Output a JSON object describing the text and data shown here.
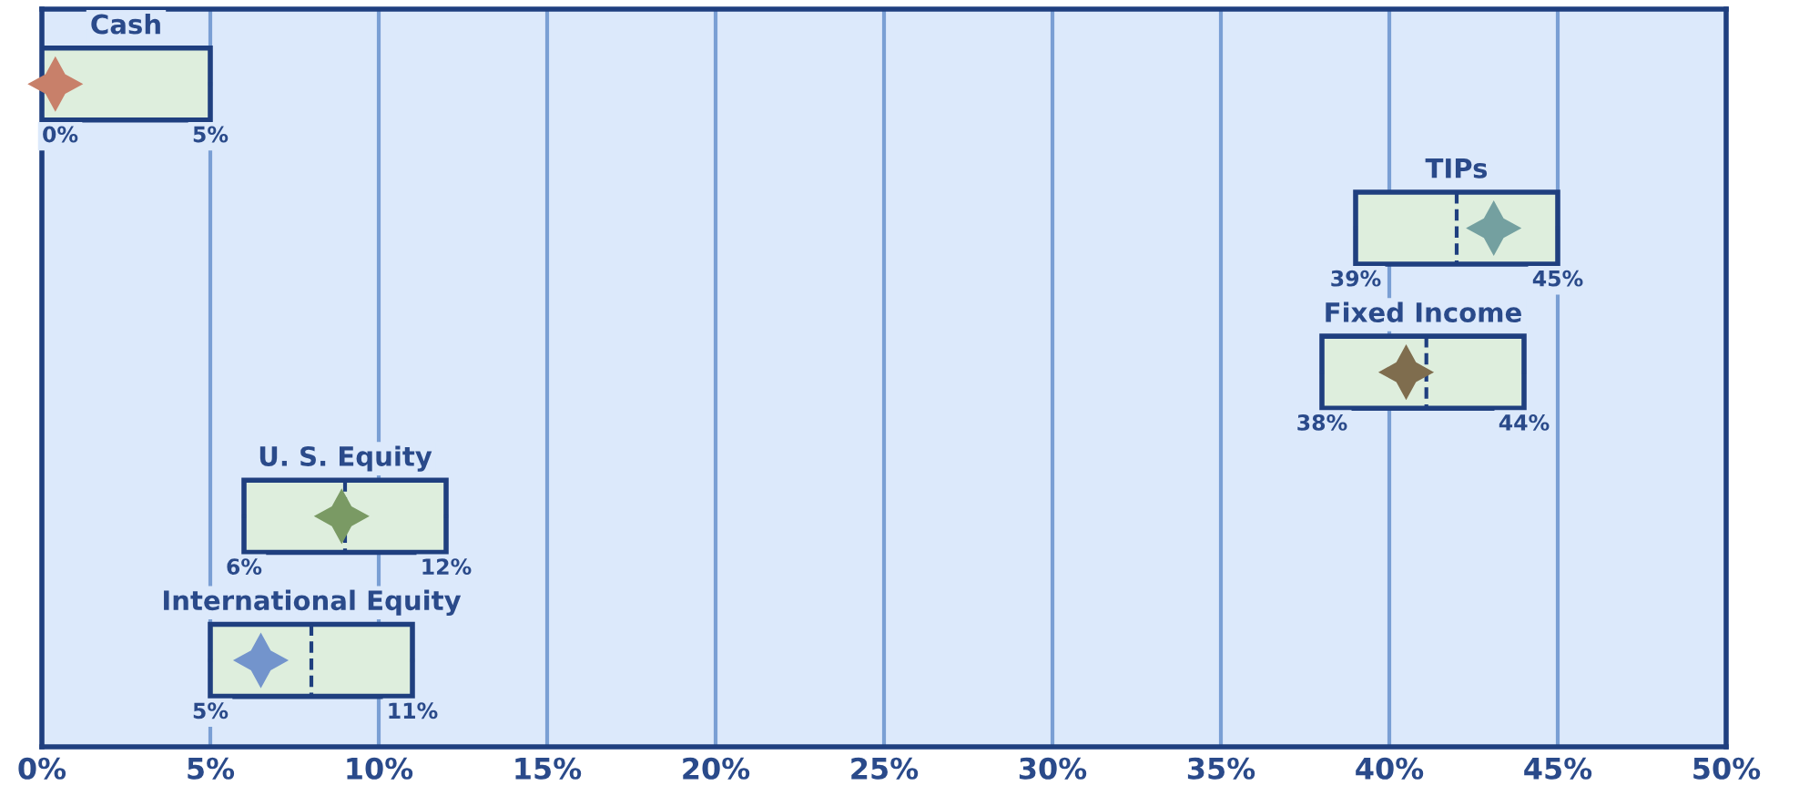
{
  "chart_data": {
    "type": "box",
    "orientation": "horizontal",
    "categories": [
      "Cash",
      "TIPs",
      "Fixed Income",
      "U. S. Equity",
      "International Equity"
    ],
    "boxes": [
      {
        "low": 0,
        "q1": 0,
        "median": 0,
        "q3": 5,
        "high": 5
      },
      {
        "low": 39,
        "q1": 39,
        "median": 42,
        "q3": 45,
        "high": 45
      },
      {
        "low": 38,
        "q1": 38,
        "median": 41.1,
        "q3": 44,
        "high": 44
      },
      {
        "low": 6,
        "q1": 6,
        "median": 9,
        "q3": 12,
        "high": 12
      },
      {
        "low": 5,
        "q1": 5,
        "median": 8,
        "q3": 11,
        "high": 11
      }
    ],
    "value_labels": [
      [
        "0%",
        "5%"
      ],
      [
        "39%",
        "45%"
      ],
      [
        "38%",
        "44%"
      ],
      [
        "6%",
        "12%"
      ],
      [
        "5%",
        "11%"
      ]
    ],
    "color": "#deeedd",
    "series": [
      {
        "type": "scatter",
        "values": [
          0.4,
          43.1,
          40.5,
          8.9,
          6.5
        ],
        "colors": [
          "#c8806a",
          "#74a0a0",
          "#7f6d4e",
          "#7a9a64",
          "#7394cc"
        ]
      }
    ],
    "marker": "star",
    "xlim": [
      0,
      50
    ],
    "xticks": [
      {
        "value": 0,
        "label": "0%"
      },
      {
        "value": 5,
        "label": "5%"
      },
      {
        "value": 10,
        "label": "10%"
      },
      {
        "value": 15,
        "label": "15%"
      },
      {
        "value": 20,
        "label": "20%"
      },
      {
        "value": 25,
        "label": "25%"
      },
      {
        "value": 30,
        "label": "30%"
      },
      {
        "value": 35,
        "label": "35%"
      },
      {
        "value": 40,
        "label": "40%"
      },
      {
        "value": 45,
        "label": "45%"
      },
      {
        "value": 50,
        "label": "50%"
      }
    ],
    "tick_labels": "x",
    "grid": "x"
  }
}
